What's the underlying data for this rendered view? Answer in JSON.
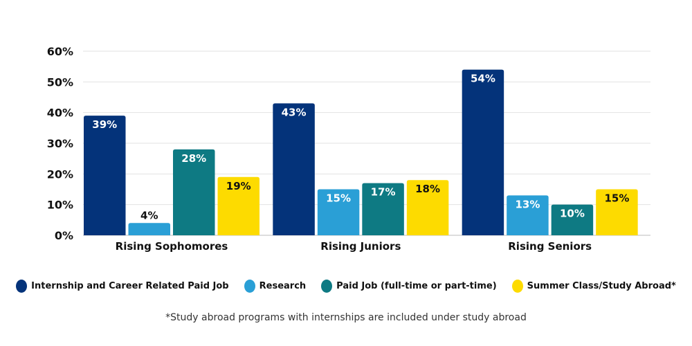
{
  "chart_data": {
    "type": "bar",
    "title": "",
    "xlabel": "",
    "ylabel": "",
    "ylim": [
      0,
      60
    ],
    "yticks": [
      "0%",
      "10%",
      "20%",
      "30%",
      "40%",
      "50%",
      "60%"
    ],
    "grid": true,
    "legend_placement": "bottom",
    "categories": [
      "Rising Sophomores",
      "Rising Juniors",
      "Rising Seniors"
    ],
    "series": [
      {
        "name": "Internship and Career Related Paid Job",
        "color": "#04337A",
        "values": [
          39,
          43,
          54
        ]
      },
      {
        "name": "Research",
        "color": "#2A9FD6",
        "values": [
          4,
          15,
          13
        ]
      },
      {
        "name": "Paid Job (full-time or part-time)",
        "color": "#0E7A83",
        "values": [
          28,
          17,
          10
        ]
      },
      {
        "name": "Summer Class/Study Abroad*",
        "color": "#FDDB00",
        "values": [
          19,
          18,
          15
        ]
      }
    ],
    "value_suffix": "%"
  },
  "footnote": "*Study abroad programs with internships are included under study abroad"
}
